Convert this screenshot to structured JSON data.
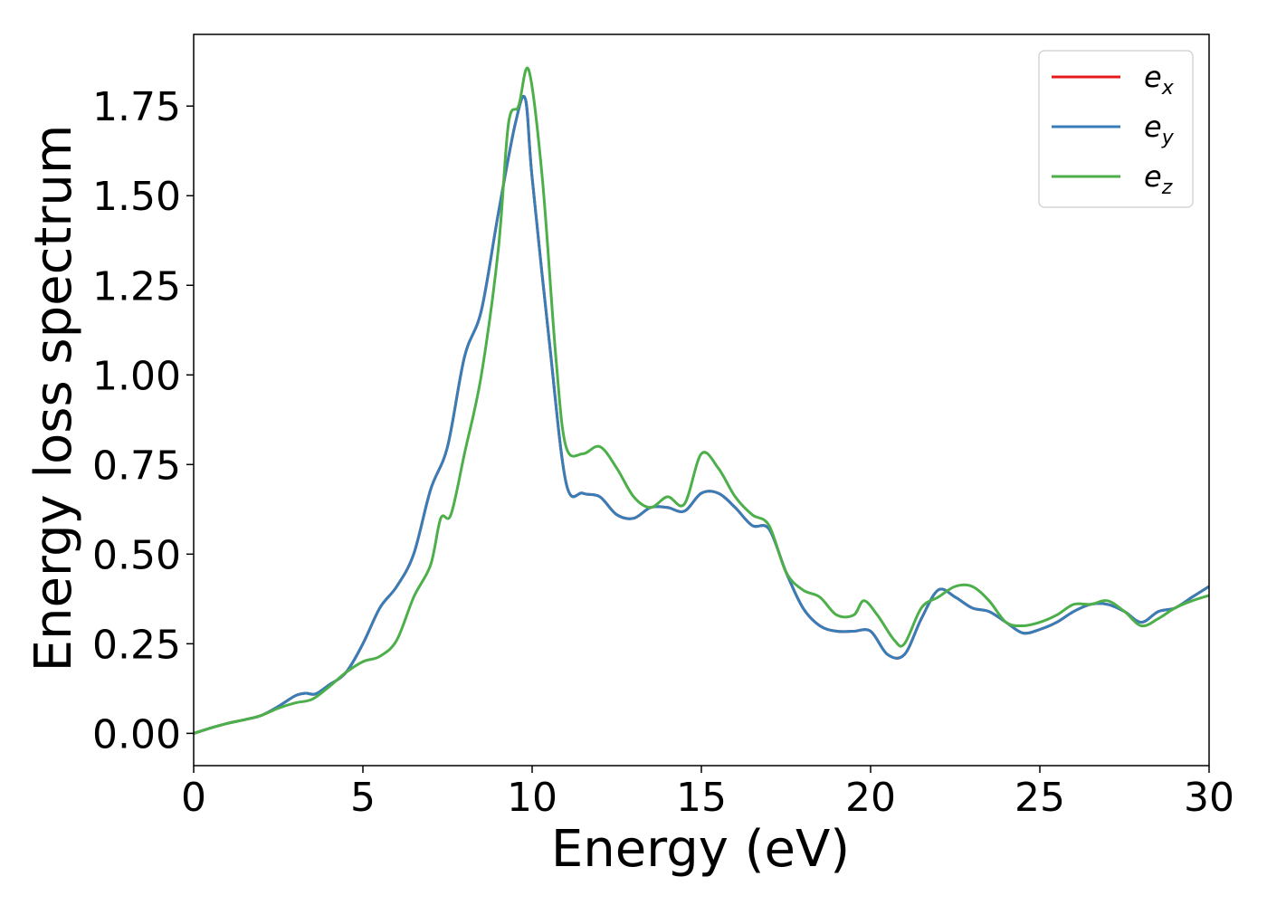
{
  "chart_data": {
    "type": "line",
    "xlabel": "Energy (eV)",
    "ylabel": "Energy loss spectrum",
    "xlim": [
      0,
      30
    ],
    "ylim": [
      -0.09,
      1.95
    ],
    "xticks": [
      "0",
      "5",
      "10",
      "15",
      "20",
      "25",
      "30"
    ],
    "yticks": [
      "0.00",
      "0.25",
      "0.50",
      "0.75",
      "1.00",
      "1.25",
      "1.50",
      "1.75"
    ],
    "grid": false,
    "legend_position": "top-right",
    "series": [
      {
        "name": "ex",
        "legend_base": "e",
        "legend_sub": "x",
        "color": "#e41a1c",
        "x": [
          0,
          0.5,
          1,
          1.5,
          2,
          2.5,
          3,
          3.3,
          3.6,
          4,
          4.5,
          5,
          5.5,
          6,
          6.5,
          7,
          7.5,
          8,
          8.5,
          9,
          9.5,
          9.8,
          10,
          10.5,
          11,
          11.5,
          12,
          12.5,
          13,
          13.5,
          14,
          14.5,
          15,
          15.5,
          16,
          16.5,
          17,
          17.5,
          18,
          18.5,
          19,
          19.5,
          20,
          20.5,
          21,
          21.5,
          22,
          22.5,
          23,
          23.5,
          24,
          24.5,
          25,
          25.5,
          26,
          26.5,
          27,
          27.5,
          28,
          28.5,
          29,
          29.5,
          30
        ],
        "y": [
          0,
          0.015,
          0.028,
          0.038,
          0.05,
          0.075,
          0.105,
          0.112,
          0.11,
          0.135,
          0.17,
          0.25,
          0.35,
          0.41,
          0.5,
          0.68,
          0.8,
          1.05,
          1.18,
          1.45,
          1.7,
          1.77,
          1.55,
          1.1,
          0.7,
          0.67,
          0.66,
          0.61,
          0.6,
          0.63,
          0.63,
          0.62,
          0.67,
          0.67,
          0.63,
          0.58,
          0.57,
          0.45,
          0.35,
          0.3,
          0.285,
          0.285,
          0.285,
          0.22,
          0.22,
          0.32,
          0.4,
          0.38,
          0.35,
          0.34,
          0.31,
          0.28,
          0.29,
          0.31,
          0.34,
          0.36,
          0.36,
          0.34,
          0.31,
          0.34,
          0.35,
          0.38,
          0.41
        ]
      },
      {
        "name": "ey",
        "legend_base": "e",
        "legend_sub": "y",
        "color": "#377eb8",
        "x": [
          0,
          0.5,
          1,
          1.5,
          2,
          2.5,
          3,
          3.3,
          3.6,
          4,
          4.5,
          5,
          5.5,
          6,
          6.5,
          7,
          7.5,
          8,
          8.5,
          9,
          9.5,
          9.8,
          10,
          10.5,
          11,
          11.5,
          12,
          12.5,
          13,
          13.5,
          14,
          14.5,
          15,
          15.5,
          16,
          16.5,
          17,
          17.5,
          18,
          18.5,
          19,
          19.5,
          20,
          20.5,
          21,
          21.5,
          22,
          22.5,
          23,
          23.5,
          24,
          24.5,
          25,
          25.5,
          26,
          26.5,
          27,
          27.5,
          28,
          28.5,
          29,
          29.5,
          30
        ],
        "y": [
          0,
          0.015,
          0.028,
          0.038,
          0.05,
          0.075,
          0.105,
          0.112,
          0.11,
          0.135,
          0.17,
          0.25,
          0.35,
          0.41,
          0.5,
          0.68,
          0.8,
          1.05,
          1.18,
          1.45,
          1.7,
          1.77,
          1.55,
          1.1,
          0.7,
          0.67,
          0.66,
          0.61,
          0.6,
          0.63,
          0.63,
          0.62,
          0.67,
          0.67,
          0.63,
          0.58,
          0.57,
          0.45,
          0.35,
          0.3,
          0.285,
          0.285,
          0.285,
          0.22,
          0.22,
          0.32,
          0.4,
          0.38,
          0.35,
          0.34,
          0.31,
          0.28,
          0.29,
          0.31,
          0.34,
          0.36,
          0.36,
          0.34,
          0.31,
          0.34,
          0.35,
          0.38,
          0.41
        ]
      },
      {
        "name": "ez",
        "legend_base": "e",
        "legend_sub": "z",
        "color": "#4daf4a",
        "x": [
          0,
          0.5,
          1,
          1.5,
          2,
          2.5,
          3,
          3.5,
          4,
          4.5,
          5,
          5.5,
          6,
          6.5,
          7,
          7.3,
          7.6,
          8,
          8.5,
          9,
          9.3,
          9.6,
          9.9,
          10.3,
          10.7,
          11,
          11.5,
          12,
          12.5,
          13,
          13.5,
          14,
          14.5,
          15,
          15.5,
          16,
          16.5,
          17,
          17.5,
          18,
          18.5,
          19,
          19.5,
          19.8,
          20.2,
          20.7,
          21,
          21.5,
          22,
          22.5,
          23,
          23.5,
          24,
          24.5,
          25,
          25.5,
          26,
          26.5,
          27,
          27.5,
          28,
          28.5,
          29,
          29.5,
          30
        ],
        "y": [
          0,
          0.015,
          0.028,
          0.038,
          0.05,
          0.07,
          0.085,
          0.095,
          0.13,
          0.17,
          0.2,
          0.215,
          0.26,
          0.38,
          0.47,
          0.6,
          0.61,
          0.78,
          1.0,
          1.35,
          1.7,
          1.75,
          1.85,
          1.55,
          1.05,
          0.8,
          0.78,
          0.8,
          0.74,
          0.66,
          0.63,
          0.66,
          0.64,
          0.78,
          0.74,
          0.66,
          0.61,
          0.58,
          0.45,
          0.4,
          0.38,
          0.33,
          0.33,
          0.37,
          0.33,
          0.26,
          0.25,
          0.35,
          0.38,
          0.41,
          0.41,
          0.37,
          0.31,
          0.3,
          0.31,
          0.33,
          0.36,
          0.36,
          0.37,
          0.34,
          0.3,
          0.32,
          0.35,
          0.37,
          0.385
        ]
      }
    ]
  }
}
